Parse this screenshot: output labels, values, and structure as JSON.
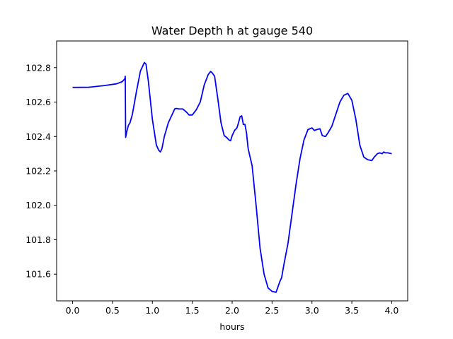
{
  "chart_data": {
    "type": "line",
    "title": "Water Depth h at gauge 540",
    "xlabel": "hours",
    "ylabel": "",
    "xlim": [
      -0.2,
      4.2
    ],
    "ylim": [
      101.445,
      102.955
    ],
    "xticks": [
      0.0,
      0.5,
      1.0,
      1.5,
      2.0,
      2.5,
      3.0,
      3.5,
      4.0
    ],
    "xtick_labels": [
      "0.0",
      "0.5",
      "1.0",
      "1.5",
      "2.0",
      "2.5",
      "3.0",
      "3.5",
      "4.0"
    ],
    "yticks": [
      101.6,
      101.8,
      102.0,
      102.2,
      102.4,
      102.6,
      102.8
    ],
    "ytick_labels": [
      "101.6",
      "101.8",
      "102.0",
      "102.2",
      "102.4",
      "102.6",
      "102.8"
    ],
    "grid": false,
    "legend": "none",
    "series": [
      {
        "color": "#0000ff",
        "x": [
          0.0,
          0.2,
          0.4,
          0.55,
          0.62,
          0.655,
          0.66,
          0.665,
          0.68,
          0.7,
          0.72,
          0.75,
          0.8,
          0.85,
          0.9,
          0.92,
          0.95,
          1.0,
          1.05,
          1.08,
          1.1,
          1.12,
          1.15,
          1.2,
          1.25,
          1.28,
          1.3,
          1.33,
          1.38,
          1.42,
          1.46,
          1.5,
          1.55,
          1.6,
          1.65,
          1.7,
          1.73,
          1.75,
          1.78,
          1.82,
          1.86,
          1.9,
          1.93,
          1.96,
          1.98,
          2.0,
          2.03,
          2.06,
          2.08,
          2.1,
          2.12,
          2.14,
          2.16,
          2.18,
          2.2,
          2.25,
          2.3,
          2.35,
          2.4,
          2.45,
          2.5,
          2.55,
          2.6,
          2.62,
          2.65,
          2.7,
          2.75,
          2.8,
          2.85,
          2.9,
          2.95,
          3.0,
          3.03,
          3.06,
          3.1,
          3.13,
          3.17,
          3.2,
          3.25,
          3.3,
          3.35,
          3.4,
          3.45,
          3.5,
          3.55,
          3.58,
          3.6,
          3.65,
          3.7,
          3.75,
          3.78,
          3.8,
          3.82,
          3.85,
          3.88,
          3.9,
          3.92,
          3.95,
          4.0
        ],
        "y": [
          102.685,
          102.686,
          102.696,
          102.706,
          102.718,
          102.735,
          102.75,
          102.395,
          102.43,
          102.465,
          102.48,
          102.53,
          102.66,
          102.78,
          102.83,
          102.82,
          102.72,
          102.5,
          102.35,
          102.32,
          102.31,
          102.33,
          102.4,
          102.48,
          102.53,
          102.56,
          102.563,
          102.56,
          102.56,
          102.545,
          102.525,
          102.525,
          102.555,
          102.6,
          102.7,
          102.76,
          102.778,
          102.77,
          102.75,
          102.62,
          102.48,
          102.405,
          102.395,
          102.38,
          102.375,
          102.405,
          102.435,
          102.45,
          102.48,
          102.515,
          102.52,
          102.47,
          102.47,
          102.42,
          102.33,
          102.23,
          102.0,
          101.75,
          101.6,
          101.52,
          101.5,
          101.495,
          101.56,
          101.58,
          101.66,
          101.78,
          101.95,
          102.12,
          102.27,
          102.38,
          102.44,
          102.45,
          102.435,
          102.44,
          102.445,
          102.405,
          102.4,
          102.42,
          102.46,
          102.53,
          102.6,
          102.64,
          102.65,
          102.61,
          102.5,
          102.41,
          102.35,
          102.28,
          102.265,
          102.26,
          102.28,
          102.29,
          102.3,
          102.305,
          102.3,
          102.31,
          102.305,
          102.305,
          102.3
        ]
      }
    ]
  }
}
